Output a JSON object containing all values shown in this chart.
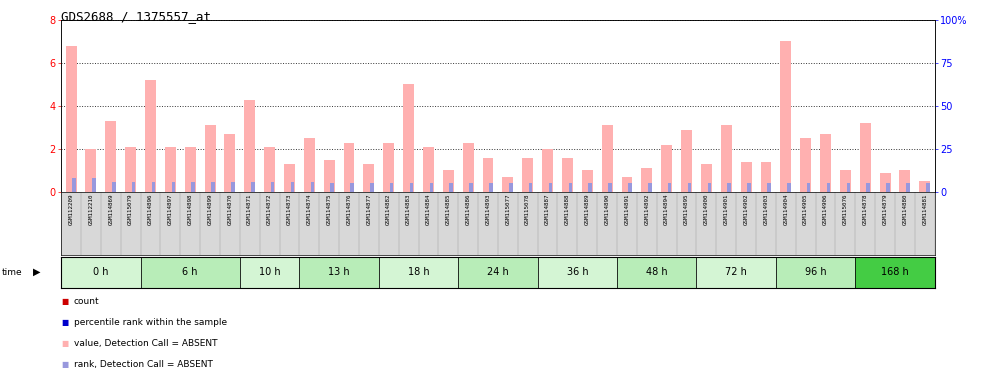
{
  "title": "GDS2688 / 1375557_at",
  "samples": [
    "GSM112209",
    "GSM112210",
    "GSM114869",
    "GSM115079",
    "GSM114896",
    "GSM114897",
    "GSM114898",
    "GSM114899",
    "GSM114870",
    "GSM114871",
    "GSM114872",
    "GSM114873",
    "GSM114874",
    "GSM114875",
    "GSM114876",
    "GSM114877",
    "GSM114882",
    "GSM114883",
    "GSM114884",
    "GSM114885",
    "GSM114886",
    "GSM114893",
    "GSM115077",
    "GSM115078",
    "GSM114887",
    "GSM114888",
    "GSM114889",
    "GSM114890",
    "GSM114891",
    "GSM114892",
    "GSM114894",
    "GSM114895",
    "GSM114900",
    "GSM114901",
    "GSM114902",
    "GSM114903",
    "GSM114904",
    "GSM114905",
    "GSM114906",
    "GSM115076",
    "GSM114878",
    "GSM114879",
    "GSM114880",
    "GSM114881"
  ],
  "values": [
    6.8,
    2.0,
    3.3,
    2.1,
    5.2,
    2.1,
    2.1,
    3.1,
    2.7,
    4.3,
    2.1,
    1.3,
    2.5,
    1.5,
    2.3,
    1.3,
    2.3,
    5.0,
    2.1,
    1.0,
    2.3,
    1.6,
    0.7,
    1.6,
    2.0,
    1.6,
    1.0,
    3.1,
    0.7,
    1.1,
    2.2,
    2.9,
    1.3,
    3.1,
    1.4,
    1.4,
    7.0,
    2.5,
    2.7,
    1.0,
    3.2,
    0.9,
    1.0,
    0.5
  ],
  "ranks_pct": [
    8,
    8,
    6,
    6,
    6,
    6,
    6,
    6,
    6,
    6,
    6,
    6,
    6,
    5,
    5,
    5,
    5,
    5,
    5,
    5,
    5,
    5,
    5,
    5,
    5,
    5,
    5,
    5,
    5,
    5,
    5,
    5,
    5,
    5,
    5,
    5,
    5,
    5,
    5,
    5,
    5,
    5,
    5,
    5
  ],
  "time_groups": [
    {
      "label": "0 h",
      "start": 0,
      "end": 4,
      "color": "#d4f5d4"
    },
    {
      "label": "6 h",
      "start": 4,
      "end": 9,
      "color": "#b8edb8"
    },
    {
      "label": "10 h",
      "start": 9,
      "end": 12,
      "color": "#d4f5d4"
    },
    {
      "label": "13 h",
      "start": 12,
      "end": 16,
      "color": "#b8edb8"
    },
    {
      "label": "18 h",
      "start": 16,
      "end": 20,
      "color": "#d4f5d4"
    },
    {
      "label": "24 h",
      "start": 20,
      "end": 24,
      "color": "#b8edb8"
    },
    {
      "label": "36 h",
      "start": 24,
      "end": 28,
      "color": "#d4f5d4"
    },
    {
      "label": "48 h",
      "start": 28,
      "end": 32,
      "color": "#b8edb8"
    },
    {
      "label": "72 h",
      "start": 32,
      "end": 36,
      "color": "#d4f5d4"
    },
    {
      "label": "96 h",
      "start": 36,
      "end": 40,
      "color": "#b8edb8"
    },
    {
      "label": "168 h",
      "start": 40,
      "end": 44,
      "color": "#44cc44"
    }
  ],
  "bar_color_value": "#ffb0b0",
  "bar_color_rank": "#9898dd",
  "bar_color_count_red": "#cc0000",
  "bar_color_count_blue": "#0000cc",
  "ylim_left": [
    0,
    8
  ],
  "ylim_right": [
    0,
    100
  ],
  "yticks_left": [
    0,
    2,
    4,
    6,
    8
  ],
  "yticks_right": [
    0,
    25,
    50,
    75,
    100
  ],
  "ytick_right_labels": [
    "0",
    "25",
    "50",
    "75",
    "100%"
  ],
  "plot_bg": "#ffffff",
  "sample_bg": "#d8d8d8"
}
